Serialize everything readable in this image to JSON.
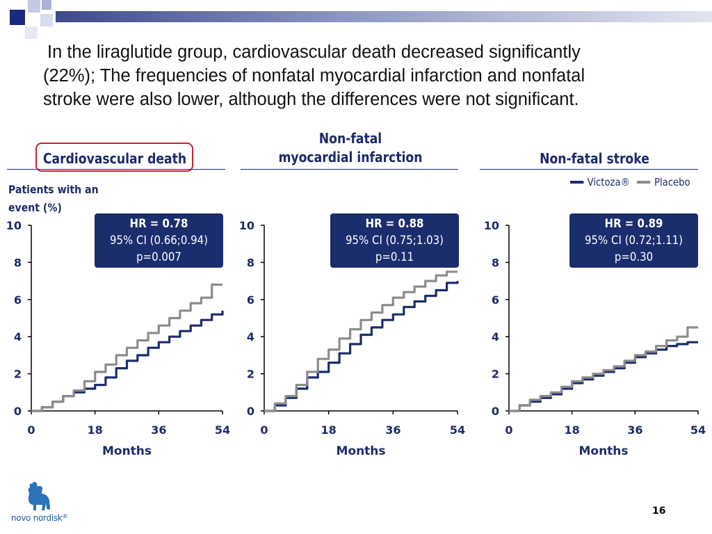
{
  "slide": {
    "headline": [
      "In the liraglutide group, cardiovascular death decreased significantly",
      "(22%); The frequencies of nonfatal myocardial infarction and nonfatal",
      "stroke were also lower, although the differences were not significant."
    ],
    "y_axis_label": [
      "Patients with an",
      "event (%)"
    ],
    "page_number": "16",
    "logo_text": "novo nordisk",
    "logo_mark": "®"
  },
  "legend": [
    {
      "label": "Victoza®",
      "color": "#1a2d6d"
    },
    {
      "label": "Placebo",
      "color": "#8c8c8c"
    }
  ],
  "colors": {
    "navy": "#1a2d6d",
    "grey": "#8c8c8c",
    "highlight": "#c0262c"
  },
  "chart_data": [
    {
      "type": "line",
      "title": [
        "Cardiovascular death"
      ],
      "highlighted": true,
      "xlabel": "Months",
      "ylabel": "Patients with an event (%)",
      "xlim": [
        0,
        54
      ],
      "ylim": [
        0,
        10
      ],
      "xticks": [
        "0",
        "18",
        "36",
        "54"
      ],
      "yticks": [
        "0",
        "2",
        "4",
        "6",
        "8",
        "10"
      ],
      "stats": {
        "hr": "HR = 0.78",
        "ci": "95% CI (0.66;0.94)",
        "p": "p=0.007"
      },
      "series": [
        {
          "name": "Victoza®",
          "x": [
            0,
            3,
            6,
            9,
            12,
            15,
            18,
            21,
            24,
            27,
            30,
            33,
            36,
            39,
            42,
            45,
            48,
            51,
            54
          ],
          "y": [
            0,
            0.2,
            0.5,
            0.8,
            1.0,
            1.2,
            1.4,
            1.8,
            2.3,
            2.7,
            3.0,
            3.4,
            3.7,
            4.0,
            4.3,
            4.6,
            4.9,
            5.2,
            5.4
          ]
        },
        {
          "name": "Placebo",
          "x": [
            0,
            3,
            6,
            9,
            12,
            15,
            18,
            21,
            24,
            27,
            30,
            33,
            36,
            39,
            42,
            45,
            48,
            51,
            54
          ],
          "y": [
            0,
            0.2,
            0.5,
            0.8,
            1.1,
            1.6,
            2.1,
            2.5,
            3.0,
            3.4,
            3.8,
            4.2,
            4.6,
            5.0,
            5.4,
            5.8,
            6.1,
            6.8,
            6.8
          ]
        }
      ]
    },
    {
      "type": "line",
      "title": [
        "Non-fatal",
        "myocardial infarction"
      ],
      "highlighted": false,
      "xlabel": "Months",
      "xlim": [
        0,
        54
      ],
      "ylim": [
        0,
        10
      ],
      "xticks": [
        "0",
        "18",
        "36",
        "54"
      ],
      "yticks": [
        "0",
        "2",
        "4",
        "6",
        "8",
        "10"
      ],
      "stats": {
        "hr": "HR = 0.88",
        "ci": "95% CI (0.75;1.03)",
        "p": "p=0.11"
      },
      "series": [
        {
          "name": "Victoza®",
          "x": [
            0,
            3,
            6,
            9,
            12,
            15,
            18,
            21,
            24,
            27,
            30,
            33,
            36,
            39,
            42,
            45,
            48,
            51,
            54
          ],
          "y": [
            0,
            0.3,
            0.7,
            1.2,
            1.8,
            2.1,
            2.6,
            3.1,
            3.6,
            4.1,
            4.5,
            4.9,
            5.2,
            5.6,
            5.9,
            6.2,
            6.5,
            6.9,
            7.0
          ]
        },
        {
          "name": "Placebo",
          "x": [
            0,
            3,
            6,
            9,
            12,
            15,
            18,
            21,
            24,
            27,
            30,
            33,
            36,
            39,
            42,
            45,
            48,
            51,
            54
          ],
          "y": [
            0,
            0.4,
            0.8,
            1.4,
            2.1,
            2.8,
            3.3,
            3.9,
            4.4,
            4.9,
            5.3,
            5.7,
            6.1,
            6.4,
            6.7,
            7.0,
            7.3,
            7.5,
            7.5
          ]
        }
      ]
    },
    {
      "type": "line",
      "title": [
        "Non-fatal stroke"
      ],
      "highlighted": false,
      "xlabel": "Months",
      "xlim": [
        0,
        54
      ],
      "ylim": [
        0,
        10
      ],
      "xticks": [
        "0",
        "18",
        "36",
        "54"
      ],
      "yticks": [
        "0",
        "2",
        "4",
        "6",
        "8",
        "10"
      ],
      "stats": {
        "hr": "HR = 0.89",
        "ci": "95% CI (0.72;1.11)",
        "p": "p=0.30"
      },
      "series": [
        {
          "name": "Victoza®",
          "x": [
            0,
            3,
            6,
            9,
            12,
            15,
            18,
            21,
            24,
            27,
            30,
            33,
            36,
            39,
            42,
            45,
            48,
            51,
            54
          ],
          "y": [
            0,
            0.3,
            0.5,
            0.7,
            0.9,
            1.2,
            1.5,
            1.7,
            1.9,
            2.1,
            2.3,
            2.6,
            2.9,
            3.1,
            3.3,
            3.5,
            3.6,
            3.7,
            3.7
          ]
        },
        {
          "name": "Placebo",
          "x": [
            0,
            3,
            6,
            9,
            12,
            15,
            18,
            21,
            24,
            27,
            30,
            33,
            36,
            39,
            42,
            45,
            48,
            51,
            54
          ],
          "y": [
            0,
            0.3,
            0.6,
            0.8,
            1.0,
            1.3,
            1.6,
            1.8,
            2.0,
            2.2,
            2.4,
            2.7,
            3.0,
            3.2,
            3.5,
            3.8,
            4.0,
            4.5,
            4.5
          ]
        }
      ]
    }
  ]
}
